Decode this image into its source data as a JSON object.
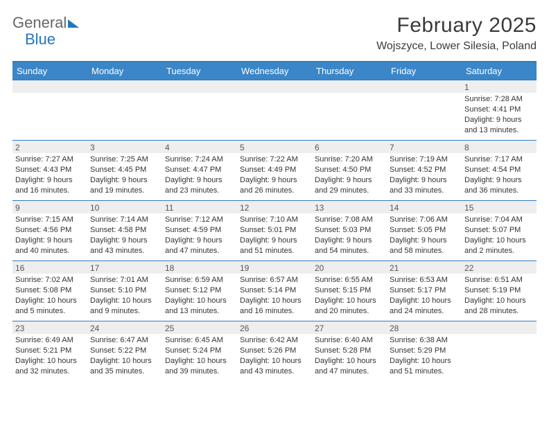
{
  "logo": {
    "word1": "General",
    "word2": "Blue"
  },
  "title": "February 2025",
  "location": "Wojszyce, Lower Silesia, Poland",
  "weekdays": [
    "Sunday",
    "Monday",
    "Tuesday",
    "Wednesday",
    "Thursday",
    "Friday",
    "Saturday"
  ],
  "colors": {
    "header_bar": "#3a86c8",
    "header_border": "#2f7bbf",
    "daynum_bg": "#eeeeee",
    "text": "#333333",
    "logo_gray": "#666666",
    "logo_blue": "#2176bd"
  },
  "weeks": [
    [
      {
        "n": "",
        "lines": []
      },
      {
        "n": "",
        "lines": []
      },
      {
        "n": "",
        "lines": []
      },
      {
        "n": "",
        "lines": []
      },
      {
        "n": "",
        "lines": []
      },
      {
        "n": "",
        "lines": []
      },
      {
        "n": "1",
        "lines": [
          "Sunrise: 7:28 AM",
          "Sunset: 4:41 PM",
          "Daylight: 9 hours and 13 minutes."
        ]
      }
    ],
    [
      {
        "n": "2",
        "lines": [
          "Sunrise: 7:27 AM",
          "Sunset: 4:43 PM",
          "Daylight: 9 hours and 16 minutes."
        ]
      },
      {
        "n": "3",
        "lines": [
          "Sunrise: 7:25 AM",
          "Sunset: 4:45 PM",
          "Daylight: 9 hours and 19 minutes."
        ]
      },
      {
        "n": "4",
        "lines": [
          "Sunrise: 7:24 AM",
          "Sunset: 4:47 PM",
          "Daylight: 9 hours and 23 minutes."
        ]
      },
      {
        "n": "5",
        "lines": [
          "Sunrise: 7:22 AM",
          "Sunset: 4:49 PM",
          "Daylight: 9 hours and 26 minutes."
        ]
      },
      {
        "n": "6",
        "lines": [
          "Sunrise: 7:20 AM",
          "Sunset: 4:50 PM",
          "Daylight: 9 hours and 29 minutes."
        ]
      },
      {
        "n": "7",
        "lines": [
          "Sunrise: 7:19 AM",
          "Sunset: 4:52 PM",
          "Daylight: 9 hours and 33 minutes."
        ]
      },
      {
        "n": "8",
        "lines": [
          "Sunrise: 7:17 AM",
          "Sunset: 4:54 PM",
          "Daylight: 9 hours and 36 minutes."
        ]
      }
    ],
    [
      {
        "n": "9",
        "lines": [
          "Sunrise: 7:15 AM",
          "Sunset: 4:56 PM",
          "Daylight: 9 hours and 40 minutes."
        ]
      },
      {
        "n": "10",
        "lines": [
          "Sunrise: 7:14 AM",
          "Sunset: 4:58 PM",
          "Daylight: 9 hours and 43 minutes."
        ]
      },
      {
        "n": "11",
        "lines": [
          "Sunrise: 7:12 AM",
          "Sunset: 4:59 PM",
          "Daylight: 9 hours and 47 minutes."
        ]
      },
      {
        "n": "12",
        "lines": [
          "Sunrise: 7:10 AM",
          "Sunset: 5:01 PM",
          "Daylight: 9 hours and 51 minutes."
        ]
      },
      {
        "n": "13",
        "lines": [
          "Sunrise: 7:08 AM",
          "Sunset: 5:03 PM",
          "Daylight: 9 hours and 54 minutes."
        ]
      },
      {
        "n": "14",
        "lines": [
          "Sunrise: 7:06 AM",
          "Sunset: 5:05 PM",
          "Daylight: 9 hours and 58 minutes."
        ]
      },
      {
        "n": "15",
        "lines": [
          "Sunrise: 7:04 AM",
          "Sunset: 5:07 PM",
          "Daylight: 10 hours and 2 minutes."
        ]
      }
    ],
    [
      {
        "n": "16",
        "lines": [
          "Sunrise: 7:02 AM",
          "Sunset: 5:08 PM",
          "Daylight: 10 hours and 5 minutes."
        ]
      },
      {
        "n": "17",
        "lines": [
          "Sunrise: 7:01 AM",
          "Sunset: 5:10 PM",
          "Daylight: 10 hours and 9 minutes."
        ]
      },
      {
        "n": "18",
        "lines": [
          "Sunrise: 6:59 AM",
          "Sunset: 5:12 PM",
          "Daylight: 10 hours and 13 minutes."
        ]
      },
      {
        "n": "19",
        "lines": [
          "Sunrise: 6:57 AM",
          "Sunset: 5:14 PM",
          "Daylight: 10 hours and 16 minutes."
        ]
      },
      {
        "n": "20",
        "lines": [
          "Sunrise: 6:55 AM",
          "Sunset: 5:15 PM",
          "Daylight: 10 hours and 20 minutes."
        ]
      },
      {
        "n": "21",
        "lines": [
          "Sunrise: 6:53 AM",
          "Sunset: 5:17 PM",
          "Daylight: 10 hours and 24 minutes."
        ]
      },
      {
        "n": "22",
        "lines": [
          "Sunrise: 6:51 AM",
          "Sunset: 5:19 PM",
          "Daylight: 10 hours and 28 minutes."
        ]
      }
    ],
    [
      {
        "n": "23",
        "lines": [
          "Sunrise: 6:49 AM",
          "Sunset: 5:21 PM",
          "Daylight: 10 hours and 32 minutes."
        ]
      },
      {
        "n": "24",
        "lines": [
          "Sunrise: 6:47 AM",
          "Sunset: 5:22 PM",
          "Daylight: 10 hours and 35 minutes."
        ]
      },
      {
        "n": "25",
        "lines": [
          "Sunrise: 6:45 AM",
          "Sunset: 5:24 PM",
          "Daylight: 10 hours and 39 minutes."
        ]
      },
      {
        "n": "26",
        "lines": [
          "Sunrise: 6:42 AM",
          "Sunset: 5:26 PM",
          "Daylight: 10 hours and 43 minutes."
        ]
      },
      {
        "n": "27",
        "lines": [
          "Sunrise: 6:40 AM",
          "Sunset: 5:28 PM",
          "Daylight: 10 hours and 47 minutes."
        ]
      },
      {
        "n": "28",
        "lines": [
          "Sunrise: 6:38 AM",
          "Sunset: 5:29 PM",
          "Daylight: 10 hours and 51 minutes."
        ]
      },
      {
        "n": "",
        "lines": []
      }
    ]
  ]
}
